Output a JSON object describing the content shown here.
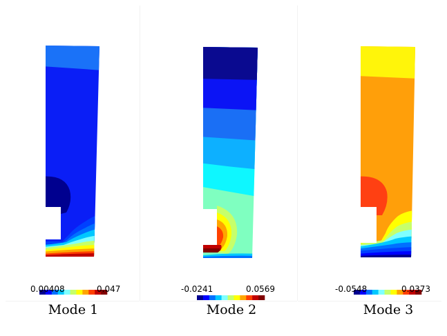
{
  "colormap": [
    "#00008f",
    "#0000ff",
    "#0070ff",
    "#00c8ff",
    "#7fffff",
    "#c6ff6a",
    "#ffff00",
    "#ffa500",
    "#ff4000",
    "#c00000",
    "#800000"
  ],
  "panels": [
    {
      "mode_label": "Mode 1",
      "colorbar": {
        "min": "0.00408",
        "max": "0.047"
      },
      "colors": {
        "body": "#0a1ef6",
        "top_band": "#1a72f8",
        "corner_blob": "#00008f"
      }
    },
    {
      "mode_label": "Mode 2",
      "colorbar": {
        "min": "-0.0241",
        "max": "0.0569"
      },
      "colors": {
        "band_1": "#0a0a90",
        "band_2": "#0b14f5",
        "band_3": "#1a6ff5",
        "band_4": "#0db0ff",
        "band_5": "#0ef7ff",
        "band_6": "#7fffc0"
      }
    },
    {
      "mode_label": "Mode 3",
      "colorbar": {
        "min": "-0.0548",
        "max": "0.0373"
      },
      "colors": {
        "top_band": "#fff50a",
        "body": "#ff9f0a",
        "corner_blob": "#ff4012"
      }
    }
  ]
}
